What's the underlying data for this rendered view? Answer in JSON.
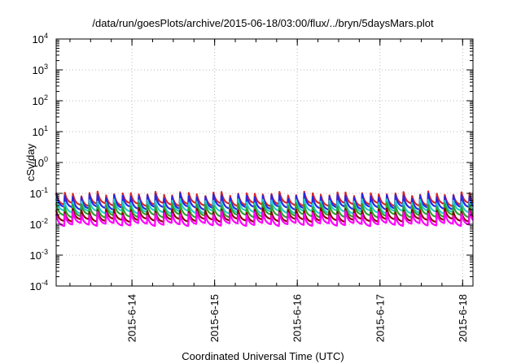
{
  "chart_data": {
    "type": "line",
    "title": "/data/run/goesPlots/archive/2015-06-18/03:00/flux/../bryn/5daysMars.plot",
    "xlabel": "Coordinated Universal Time (UTC)",
    "ylabel": "cSv/day",
    "x_range": [
      "2015-06-13 02:00",
      "2015-06-18 03:00"
    ],
    "ylim": [
      0.0001,
      10000
    ],
    "y_scale": "log",
    "grid": true,
    "legend": "none",
    "x_ticks": [
      {
        "date": "2015-06-14 00:00",
        "label": "2015-6-14"
      },
      {
        "date": "2015-06-15 00:00",
        "label": "2015-6-15"
      },
      {
        "date": "2015-06-16 00:00",
        "label": "2015-6-16"
      },
      {
        "date": "2015-06-17 00:00",
        "label": "2015-6-17"
      },
      {
        "date": "2015-06-18 00:00",
        "label": "2015-6-18"
      }
    ],
    "y_ticks": [
      {
        "value": 0.0001,
        "base": "10",
        "exp": "-4"
      },
      {
        "value": 0.001,
        "base": "10",
        "exp": "-3"
      },
      {
        "value": 0.01,
        "base": "10",
        "exp": "-2"
      },
      {
        "value": 0.1,
        "base": "10",
        "exp": "-1"
      },
      {
        "value": 1,
        "base": "10",
        "exp": "0"
      },
      {
        "value": 10,
        "base": "10",
        "exp": "1"
      },
      {
        "value": 100,
        "base": "10",
        "exp": "2"
      },
      {
        "value": 1000,
        "base": "10",
        "exp": "3"
      },
      {
        "value": 10000,
        "base": "10",
        "exp": "4"
      }
    ],
    "series": [
      {
        "color": "#d62728",
        "peak": 0.105,
        "trough": 0.042
      },
      {
        "color": "#2828e6",
        "peak": 0.09,
        "trough": 0.032
      },
      {
        "color": "#22cccc",
        "peak": 0.06,
        "trough": 0.024
      },
      {
        "color": "#2ca02c",
        "peak": 0.045,
        "trough": 0.018
      },
      {
        "color": "#8b0000",
        "peak": 0.03,
        "trough": 0.013
      },
      {
        "color": "#ff00ff",
        "peak": 0.024,
        "trough": 0.0095
      }
    ],
    "sawtooth_period_hours": 2.4
  }
}
